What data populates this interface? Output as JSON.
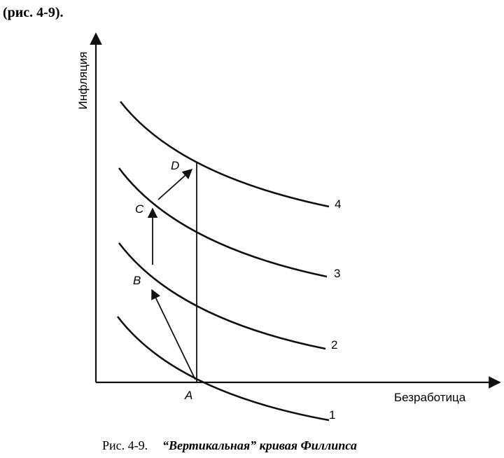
{
  "header": {
    "text": "(рис. 4-9)."
  },
  "axes": {
    "y_label": "Инфляция",
    "x_label": "Безработица"
  },
  "curves": [
    {
      "label": "1"
    },
    {
      "label": "2"
    },
    {
      "label": "3"
    },
    {
      "label": "4"
    }
  ],
  "points": [
    {
      "label": "A"
    },
    {
      "label": "B"
    },
    {
      "label": "C"
    },
    {
      "label": "D"
    }
  ],
  "caption": {
    "number": "Рис. 4-9.",
    "title": "“Вертикальная” кривая Филлипса"
  }
}
